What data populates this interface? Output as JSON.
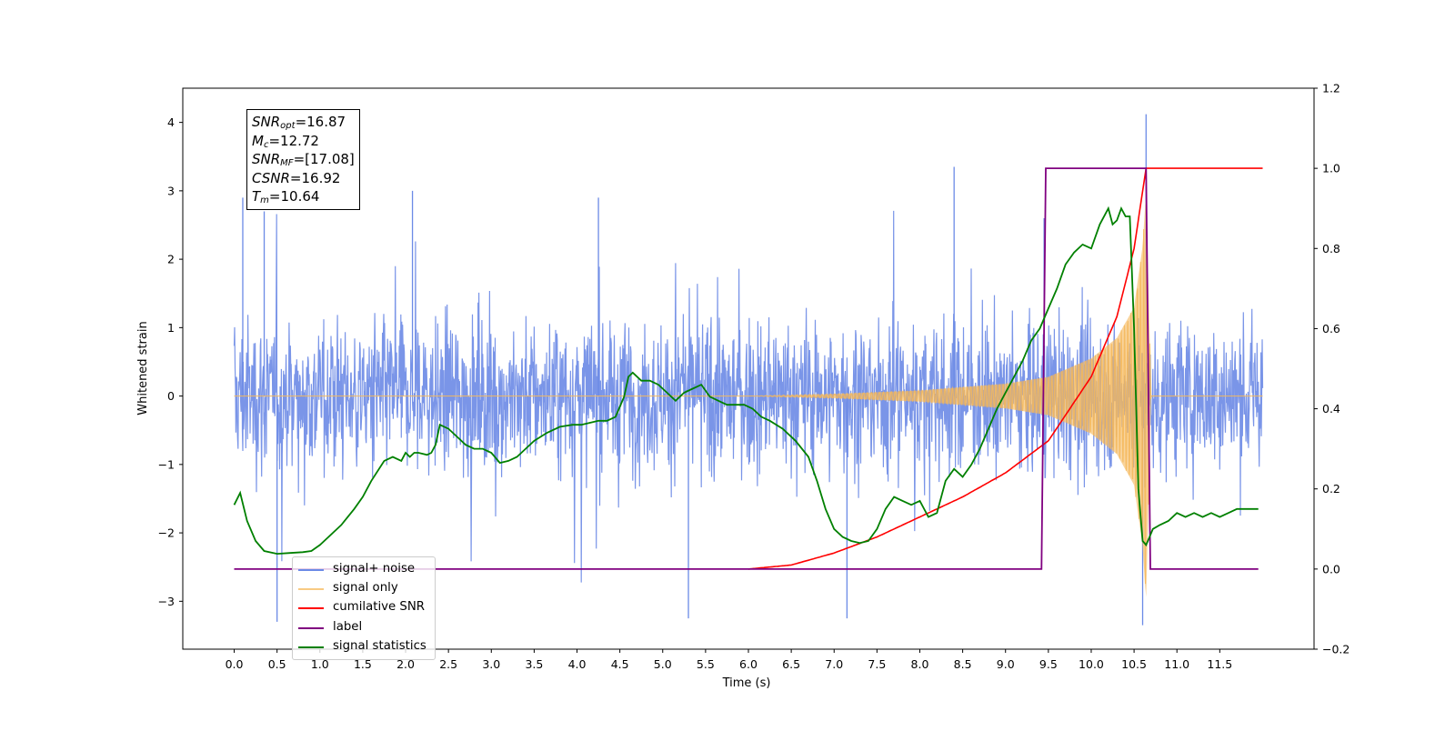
{
  "chart_data": {
    "type": "line",
    "xlabel": "Time (s)",
    "ylabel_left": "Whitened strain",
    "xlim": [
      -0.6,
      12.6
    ],
    "ylim_left": [
      -3.7,
      4.5
    ],
    "ylim_right": [
      -0.2,
      1.2
    ],
    "xticks": [
      "0.0",
      "0.5",
      "1.0",
      "1.5",
      "2.0",
      "2.5",
      "3.0",
      "3.5",
      "4.0",
      "4.5",
      "5.0",
      "5.5",
      "6.0",
      "6.5",
      "7.0",
      "7.5",
      "8.0",
      "8.5",
      "9.0",
      "9.5",
      "10.0",
      "10.5",
      "11.0",
      "11.5"
    ],
    "yticks_left": [
      "−3",
      "−2",
      "−1",
      "0",
      "1",
      "2",
      "3",
      "4"
    ],
    "yticks_right": [
      "−0.2",
      "0.0",
      "0.2",
      "0.4",
      "0.6",
      "0.8",
      "1.0",
      "1.2"
    ],
    "grid": false,
    "legend_placement": "lower-left",
    "stats": [
      {
        "symbol": "SNR",
        "sub": "opt",
        "value": "=16.87"
      },
      {
        "symbol": "M",
        "sub": "c",
        "value": "=12.72"
      },
      {
        "symbol": "SNR",
        "sub": "MF",
        "value": "=[17.08]"
      },
      {
        "symbol": "CSNR",
        "sub": "",
        "value": "=16.92"
      },
      {
        "symbol": "T",
        "sub": "m",
        "value": "=10.64"
      }
    ],
    "series": [
      {
        "name": "signal+ noise",
        "color": "#6b8ae6",
        "axis": "left",
        "description_note": "noise band",
        "x_range": [
          0.0,
          12.0
        ],
        "envelope_min": -3.35,
        "envelope_max": 4.12
      },
      {
        "name": "signal only",
        "color": "#f5b85a",
        "axis": "left",
        "x": [
          0.0,
          6.0,
          7.0,
          8.0,
          9.0,
          9.5,
          10.0,
          10.3,
          10.5,
          10.6,
          10.64,
          10.7,
          12.0
        ],
        "amplitude": [
          0.0,
          0.0,
          0.03,
          0.08,
          0.18,
          0.28,
          0.55,
          0.85,
          1.3,
          2.2,
          3.0,
          0.0,
          0.0
        ]
      },
      {
        "name": "cumilative SNR",
        "color": "#ff0000",
        "axis": "right",
        "x": [
          6.0,
          6.5,
          7.0,
          7.5,
          8.0,
          8.5,
          9.0,
          9.5,
          10.0,
          10.3,
          10.5,
          10.64,
          12.0
        ],
        "y": [
          0.0,
          0.01,
          0.04,
          0.08,
          0.13,
          0.18,
          0.24,
          0.32,
          0.48,
          0.63,
          0.8,
          1.0,
          1.0
        ]
      },
      {
        "name": "label",
        "color": "#800080",
        "axis": "right",
        "x": [
          0.0,
          9.42,
          9.47,
          10.64,
          10.69,
          11.95
        ],
        "y": [
          0.0,
          0.0,
          1.0,
          1.0,
          0.0,
          0.0
        ]
      },
      {
        "name": "signal statistics",
        "color": "#008000",
        "axis": "right",
        "x": [
          0.0,
          0.07,
          0.15,
          0.25,
          0.35,
          0.5,
          0.65,
          0.8,
          0.9,
          1.0,
          1.1,
          1.25,
          1.4,
          1.5,
          1.6,
          1.75,
          1.85,
          1.95,
          2.0,
          2.05,
          2.1,
          2.15,
          2.25,
          2.3,
          2.35,
          2.4,
          2.5,
          2.6,
          2.7,
          2.8,
          2.9,
          3.0,
          3.1,
          3.2,
          3.3,
          3.4,
          3.5,
          3.65,
          3.8,
          3.95,
          4.05,
          4.15,
          4.25,
          4.35,
          4.45,
          4.55,
          4.6,
          4.65,
          4.75,
          4.85,
          4.95,
          5.05,
          5.15,
          5.25,
          5.35,
          5.45,
          5.55,
          5.65,
          5.75,
          5.85,
          5.95,
          6.05,
          6.15,
          6.25,
          6.4,
          6.55,
          6.7,
          6.8,
          6.9,
          7.0,
          7.1,
          7.2,
          7.3,
          7.4,
          7.5,
          7.6,
          7.7,
          7.8,
          7.9,
          8.0,
          8.1,
          8.2,
          8.3,
          8.4,
          8.5,
          8.6,
          8.7,
          8.8,
          8.9,
          9.0,
          9.1,
          9.2,
          9.3,
          9.4,
          9.5,
          9.6,
          9.7,
          9.8,
          9.9,
          10.0,
          10.1,
          10.2,
          10.25,
          10.3,
          10.35,
          10.4,
          10.45,
          10.5,
          10.55,
          10.6,
          10.64,
          10.68,
          10.72,
          10.8,
          10.9,
          11.0,
          11.1,
          11.2,
          11.3,
          11.4,
          11.5,
          11.6,
          11.7,
          11.8,
          11.9,
          11.95
        ],
        "y": [
          0.16,
          0.19,
          0.12,
          0.07,
          0.045,
          0.038,
          0.04,
          0.042,
          0.045,
          0.06,
          0.08,
          0.11,
          0.15,
          0.18,
          0.22,
          0.27,
          0.28,
          0.27,
          0.29,
          0.28,
          0.29,
          0.29,
          0.285,
          0.29,
          0.31,
          0.36,
          0.35,
          0.33,
          0.31,
          0.3,
          0.3,
          0.29,
          0.265,
          0.27,
          0.28,
          0.3,
          0.32,
          0.34,
          0.355,
          0.36,
          0.36,
          0.365,
          0.37,
          0.37,
          0.38,
          0.43,
          0.48,
          0.49,
          0.47,
          0.47,
          0.46,
          0.44,
          0.42,
          0.44,
          0.45,
          0.46,
          0.43,
          0.42,
          0.41,
          0.41,
          0.41,
          0.4,
          0.38,
          0.37,
          0.35,
          0.32,
          0.28,
          0.22,
          0.15,
          0.1,
          0.08,
          0.07,
          0.065,
          0.07,
          0.1,
          0.15,
          0.18,
          0.17,
          0.16,
          0.17,
          0.13,
          0.14,
          0.22,
          0.25,
          0.23,
          0.26,
          0.3,
          0.35,
          0.4,
          0.44,
          0.48,
          0.52,
          0.57,
          0.6,
          0.65,
          0.7,
          0.76,
          0.79,
          0.81,
          0.8,
          0.86,
          0.9,
          0.86,
          0.87,
          0.9,
          0.88,
          0.88,
          0.6,
          0.2,
          0.07,
          0.06,
          0.08,
          0.1,
          0.11,
          0.12,
          0.14,
          0.13,
          0.14,
          0.13,
          0.14,
          0.13,
          0.14,
          0.15,
          0.15,
          0.15,
          0.15
        ]
      }
    ]
  }
}
